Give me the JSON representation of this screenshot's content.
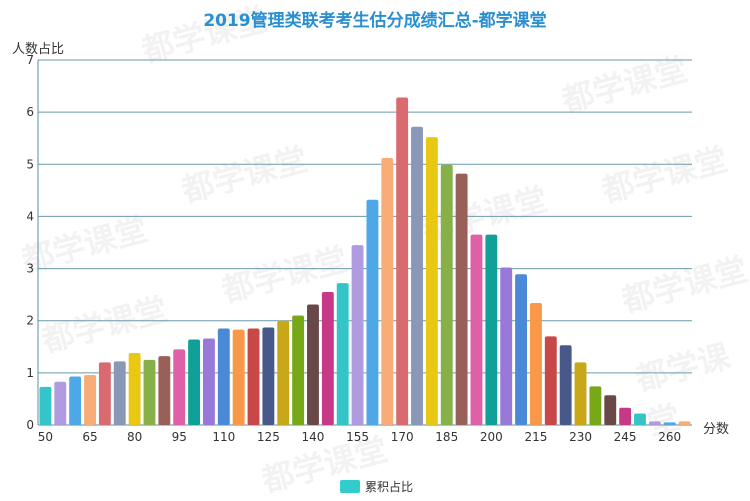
{
  "chart_data": {
    "type": "bar",
    "title": "2019管理类联考考生估分成绩汇总-都学课堂",
    "ylabel": "人数占比",
    "xlabel": "分数",
    "ylim": [
      0,
      7
    ],
    "yticks": [
      0,
      1,
      2,
      3,
      4,
      5,
      6,
      7
    ],
    "xtick_labels": [
      "50",
      "65",
      "80",
      "95",
      "110",
      "125",
      "140",
      "155",
      "170",
      "185",
      "200",
      "215",
      "230",
      "245",
      "260"
    ],
    "categories": [
      50,
      55,
      60,
      65,
      70,
      75,
      80,
      85,
      90,
      95,
      100,
      105,
      110,
      115,
      120,
      125,
      130,
      135,
      140,
      145,
      150,
      155,
      160,
      165,
      170,
      175,
      180,
      185,
      190,
      195,
      200,
      205,
      210,
      215,
      220,
      225,
      230,
      235,
      240,
      245,
      250,
      255,
      260,
      265
    ],
    "values": [
      0.73,
      0.83,
      0.93,
      0.96,
      1.2,
      1.22,
      1.38,
      1.25,
      1.32,
      1.45,
      1.64,
      1.66,
      1.85,
      1.83,
      1.85,
      1.87,
      2.0,
      2.1,
      2.31,
      2.55,
      2.72,
      3.45,
      4.32,
      5.12,
      6.28,
      5.72,
      5.52,
      4.99,
      4.82,
      3.65,
      3.65,
      3.02,
      2.89,
      2.34,
      1.7,
      1.53,
      1.2,
      0.74,
      0.57,
      0.33,
      0.22,
      0.07,
      0.05,
      0.07
    ],
    "colors": [
      "#33c5c8",
      "#b09ae0",
      "#4ea8e8",
      "#f8ac78",
      "#d86a70",
      "#8a98b8",
      "#e8c812",
      "#88b048",
      "#986058",
      "#e060a8",
      "#10a098",
      "#9878d8",
      "#4a88d8",
      "#f89848",
      "#c84848",
      "#485888",
      "#c8a818",
      "#78a818",
      "#684848",
      "#c83888"
    ],
    "legend": [
      {
        "label": "累积占比",
        "color": "#33c5c8"
      }
    ],
    "legend_position": "bottom",
    "grid": true
  }
}
